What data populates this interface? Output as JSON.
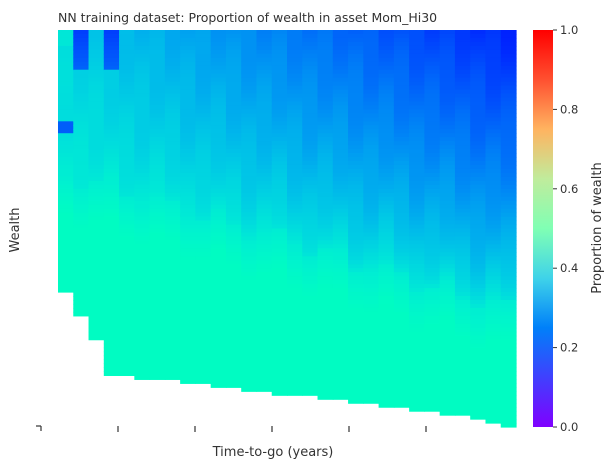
{
  "chart_data": {
    "type": "heatmap",
    "title": "NN training dataset: Proportion of wealth in asset Mom_Hi30",
    "xlabel": "Time-to-go (years)",
    "ylabel": "Wealth",
    "x_tick_labels": [],
    "y_tick_labels": [],
    "x_tick_count": 6,
    "n_time_columns": 30,
    "n_wealth_rows": 100,
    "colorbar": {
      "label": "Proportion of wealth",
      "colormap": "rainbow",
      "vmin": 0.0,
      "vmax": 1.0,
      "ticks": [
        0.0,
        0.2,
        0.4,
        0.6,
        0.8,
        1.0
      ],
      "tick_labels": [
        "0.0",
        "0.2",
        "0.4",
        "0.6",
        "0.8",
        "1.0"
      ]
    },
    "value_levels": {
      "low_wealth": 0.45,
      "mid_wealth": 0.38,
      "high_wealth_long_horizon": 0.32,
      "high_wealth_short_horizon": 0.05
    }
  },
  "colors": {
    "background": "#ffffff",
    "text": "#333333",
    "axis_tick": "#333333"
  }
}
